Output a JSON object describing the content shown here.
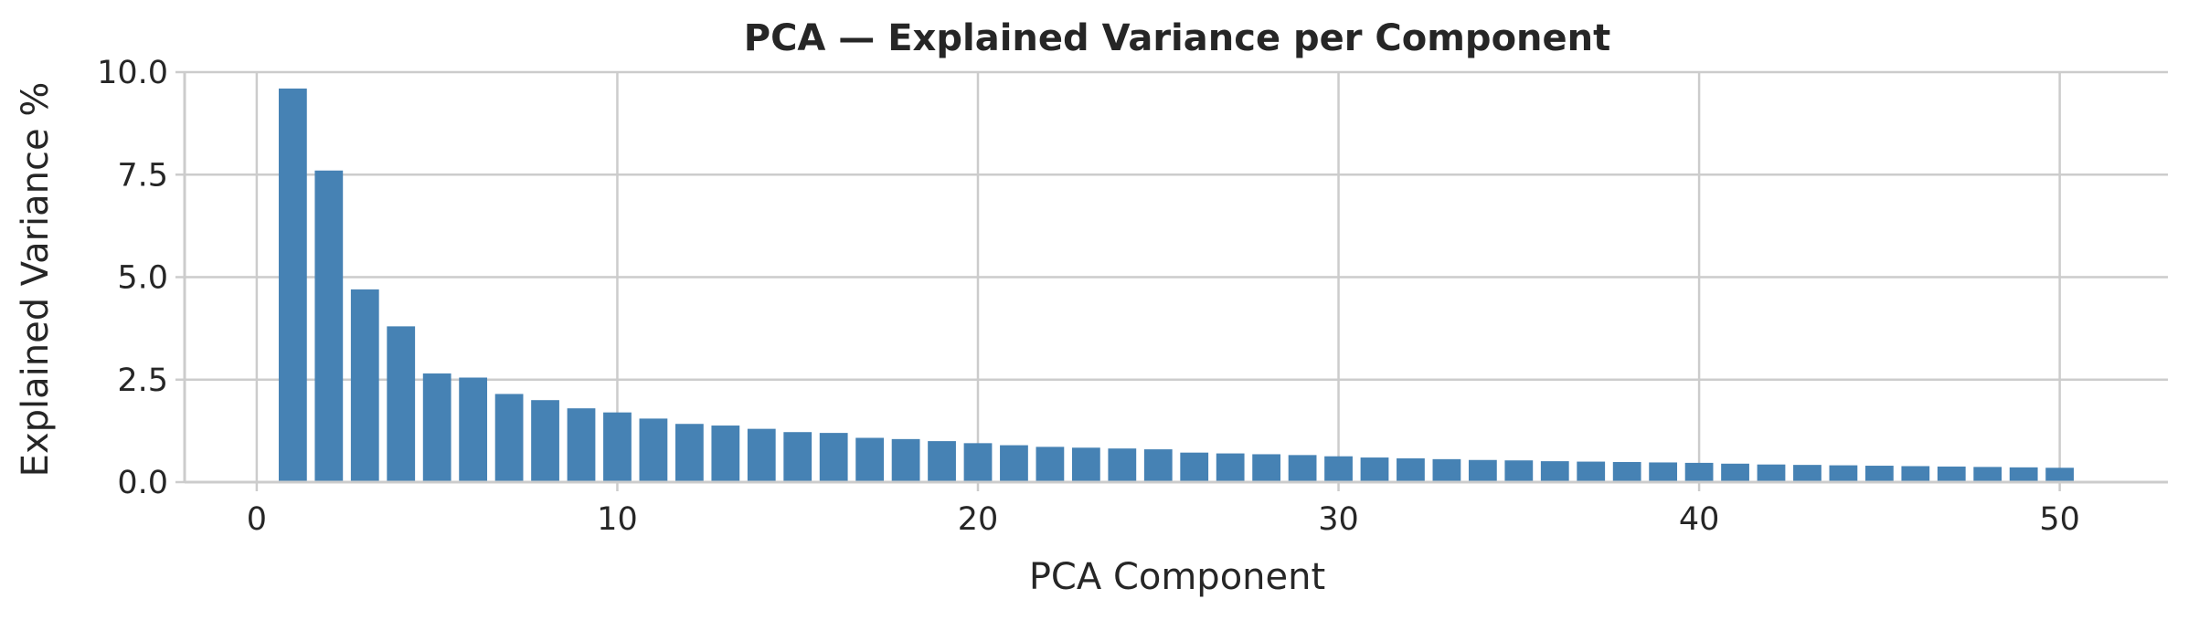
{
  "chart_data": {
    "type": "bar",
    "title": "PCA — Explained Variance per Component",
    "xlabel": "PCA Component",
    "ylabel": "Explained Variance %",
    "x": [
      1,
      2,
      3,
      4,
      5,
      6,
      7,
      8,
      9,
      10,
      11,
      12,
      13,
      14,
      15,
      16,
      17,
      18,
      19,
      20,
      21,
      22,
      23,
      24,
      25,
      26,
      27,
      28,
      29,
      30,
      31,
      32,
      33,
      34,
      35,
      36,
      37,
      38,
      39,
      40,
      41,
      42,
      43,
      44,
      45,
      46,
      47,
      48,
      49,
      50
    ],
    "values": [
      9.6,
      7.6,
      4.7,
      3.8,
      2.65,
      2.55,
      2.15,
      2.0,
      1.8,
      1.7,
      1.55,
      1.42,
      1.38,
      1.3,
      1.22,
      1.2,
      1.08,
      1.05,
      1.0,
      0.95,
      0.9,
      0.86,
      0.84,
      0.82,
      0.8,
      0.72,
      0.7,
      0.68,
      0.66,
      0.63,
      0.6,
      0.58,
      0.56,
      0.54,
      0.53,
      0.51,
      0.5,
      0.49,
      0.48,
      0.47,
      0.45,
      0.43,
      0.42,
      0.41,
      0.4,
      0.39,
      0.38,
      0.37,
      0.36,
      0.35
    ],
    "xlim": [
      -2,
      53
    ],
    "ylim": [
      0,
      10
    ],
    "xticks": [
      0,
      10,
      20,
      30,
      40,
      50
    ],
    "xtick_labels": [
      "0",
      "10",
      "20",
      "30",
      "40",
      "50"
    ],
    "yticks": [
      0,
      2.5,
      5,
      7.5,
      10
    ],
    "ytick_labels": [
      "0.0",
      "2.5",
      "5.0",
      "7.5",
      "10.0"
    ],
    "grid": true,
    "bar_color": "#4682b4"
  }
}
